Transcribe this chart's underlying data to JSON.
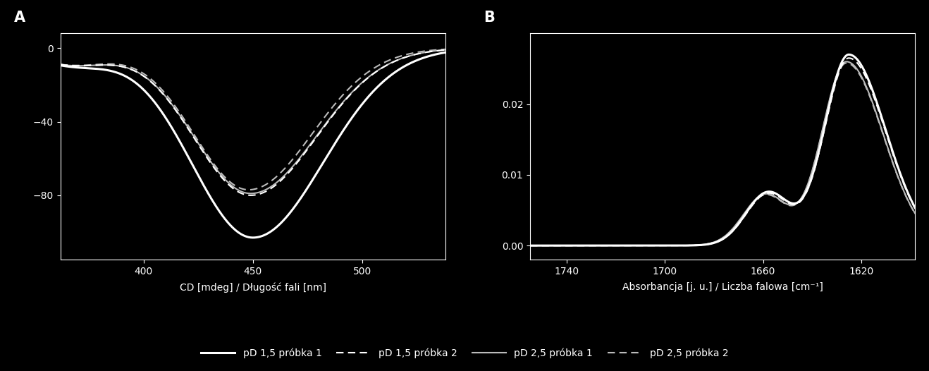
{
  "background_color": "#000000",
  "text_color": "#ffffff",
  "panel_A": {
    "label": "A",
    "xlabel": "CD [mdeg] / Długość fali [nm]",
    "xlim": [
      362,
      538
    ],
    "ylim": [
      -115,
      8
    ],
    "xticks": [
      400,
      450,
      500
    ],
    "yticks": [
      0,
      -40,
      -80
    ]
  },
  "panel_B": {
    "label": "B",
    "xlabel": "Absorbancja [j. u.] / Liczba falowa [cm⁻¹]",
    "xlim": [
      1755,
      1598
    ],
    "ylim": [
      -0.002,
      0.03
    ],
    "xticks": [
      1740,
      1700,
      1660,
      1620
    ],
    "yticks": [
      0,
      0.01,
      0.02
    ]
  },
  "legend": {
    "entries": [
      {
        "label": "pD 1,5 próbka 1",
        "style": "solid",
        "color": "#ffffff",
        "lw": 2.2
      },
      {
        "label": "pD 1,5 próbka 2",
        "style": "dashed",
        "color": "#ffffff",
        "lw": 1.5
      },
      {
        "label": "pD 2,5 próbka 1",
        "style": "solid",
        "color": "#bbbbbb",
        "lw": 1.5
      },
      {
        "label": "pD 2,5 próbka 2",
        "style": "dashed",
        "color": "#bbbbbb",
        "lw": 1.5
      }
    ]
  },
  "gray_color": "#bbbbbb",
  "white_color": "#ffffff"
}
